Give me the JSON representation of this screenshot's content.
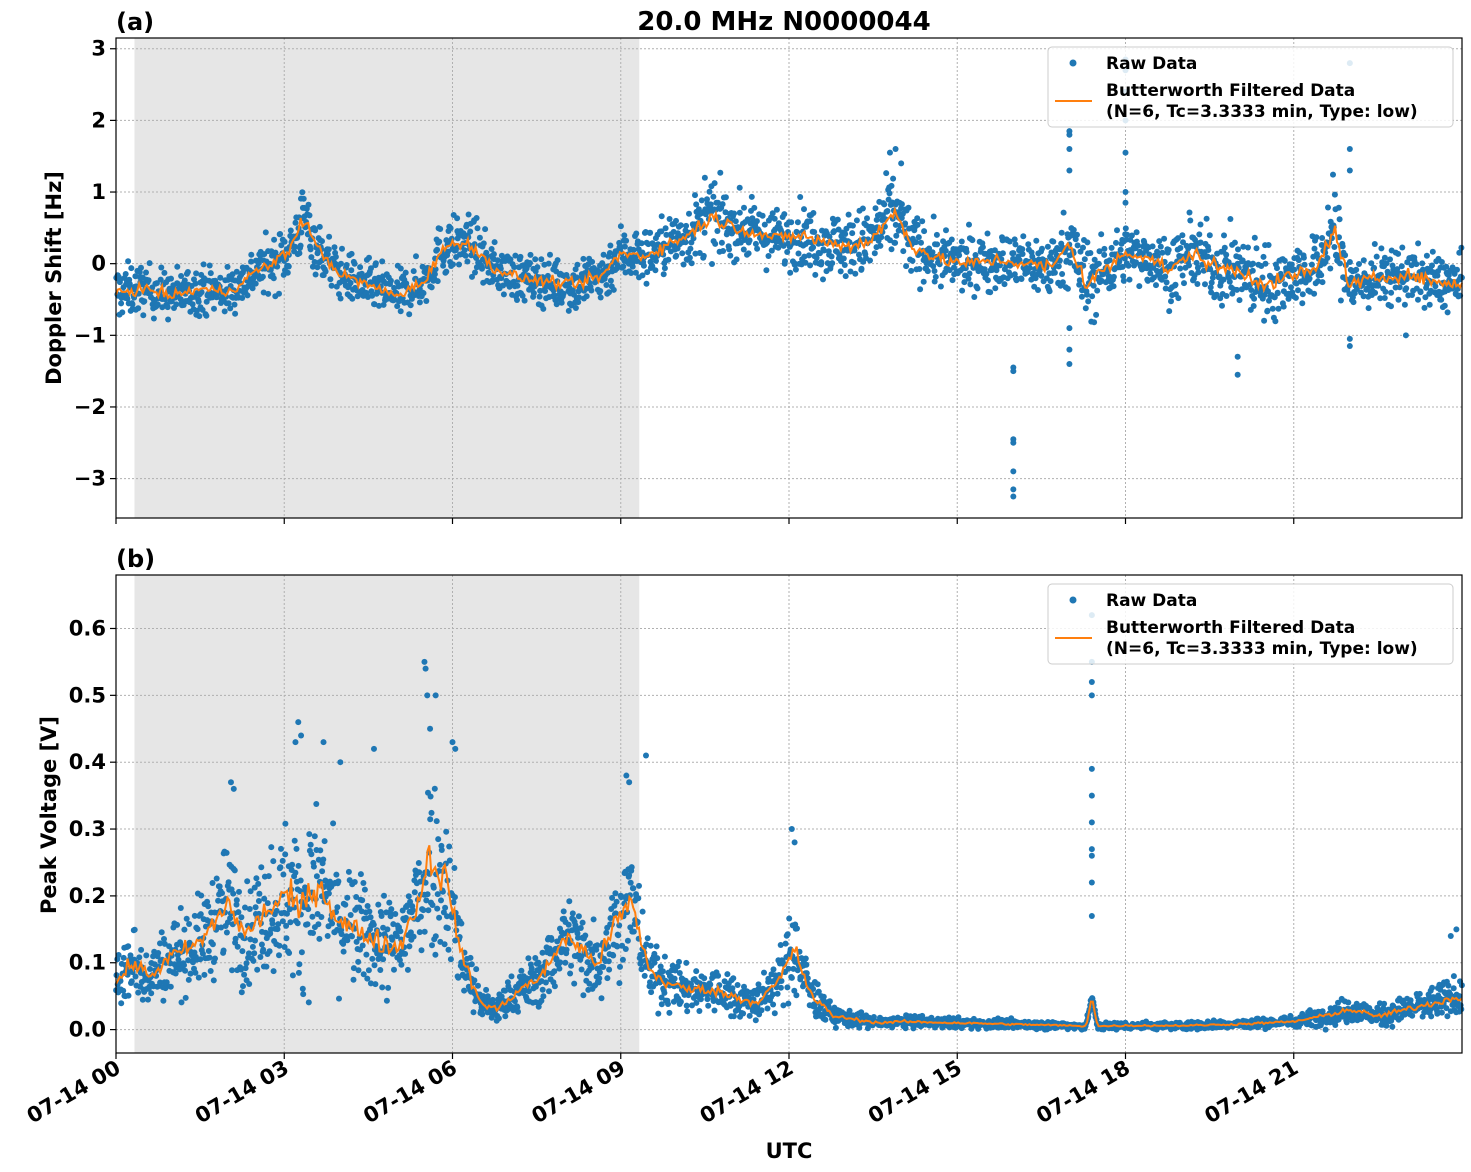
{
  "figure": {
    "title": "20.0 MHz N0000044",
    "xlabel": "UTC",
    "x_tick_labels": [
      "07-14 00",
      "07-14 03",
      "07-14 06",
      "07-14 09",
      "07-14 12",
      "07-14 15",
      "07-14 18",
      "07-14 21"
    ]
  },
  "colors": {
    "raw": "#1f77b4",
    "filtered": "#ff7f0e",
    "shade": "#e6e6e6",
    "grid": "#b0b0b0"
  },
  "chart_data": [
    {
      "type": "scatter",
      "panel_label": "(a)",
      "ylabel": "Doppler Shift [Hz]",
      "x_unit": "hours UTC on 07-14",
      "xlim": [
        0,
        24
      ],
      "ylim": [
        -3.55,
        3.15
      ],
      "y_ticks": [
        3,
        2,
        1,
        0,
        -1,
        -2,
        -3
      ],
      "y_tick_labels": [
        "3",
        "2",
        "1",
        "0",
        "−1",
        "−2",
        "−3"
      ],
      "shaded_x_range": [
        0.33,
        9.33
      ],
      "grid": true,
      "legend_position": "upper right",
      "legend": {
        "raw_label": "Raw Data",
        "filtered_line1": "Butterworth Filtered Data",
        "filtered_line2": "(N=6, Tc=3.3333 min, Type: low)"
      },
      "series": [
        {
          "name": "Butterworth Filtered Data",
          "x": [
            0,
            0.5,
            1,
            1.5,
            2,
            2.5,
            2.8,
            3.1,
            3.35,
            3.6,
            4,
            4.5,
            5,
            5.5,
            5.8,
            6.0,
            6.3,
            6.7,
            7.2,
            7.7,
            8.2,
            8.7,
            9.0,
            9.4,
            9.8,
            10.2,
            10.6,
            10.9,
            11.3,
            11.8,
            12.2,
            12.6,
            13.0,
            13.4,
            13.7,
            13.9,
            14.2,
            14.7,
            15.2,
            15.7,
            16.2,
            16.7,
            17.0,
            17.3,
            17.6,
            18.0,
            18.4,
            18.8,
            19.2,
            19.6,
            20.0,
            20.3,
            20.6,
            21.0,
            21.4,
            21.7,
            22.0,
            22.5,
            23.0,
            23.5,
            24.0
          ],
          "y": [
            -0.4,
            -0.35,
            -0.45,
            -0.35,
            -0.4,
            -0.1,
            0.0,
            0.2,
            0.65,
            0.2,
            -0.15,
            -0.3,
            -0.45,
            -0.25,
            0.2,
            0.25,
            0.3,
            -0.05,
            -0.2,
            -0.25,
            -0.3,
            -0.15,
            0.15,
            0.1,
            0.25,
            0.4,
            0.65,
            0.55,
            0.45,
            0.35,
            0.4,
            0.3,
            0.25,
            0.3,
            0.55,
            0.7,
            0.25,
            0.05,
            0.0,
            0.05,
            0.0,
            -0.05,
            0.3,
            -0.3,
            -0.1,
            0.15,
            0.1,
            -0.1,
            0.15,
            -0.05,
            -0.1,
            -0.2,
            -0.3,
            -0.15,
            -0.1,
            0.5,
            -0.3,
            -0.2,
            -0.15,
            -0.25,
            -0.3
          ]
        },
        {
          "name": "Raw Data",
          "spread": [
            0.35,
            0.3,
            0.3,
            0.3,
            0.3,
            0.3,
            0.35,
            0.35,
            0.4,
            0.35,
            0.3,
            0.3,
            0.3,
            0.3,
            0.35,
            0.35,
            0.35,
            0.3,
            0.3,
            0.3,
            0.35,
            0.35,
            0.35,
            0.35,
            0.35,
            0.4,
            0.45,
            0.4,
            0.35,
            0.35,
            0.4,
            0.4,
            0.4,
            0.45,
            0.5,
            0.55,
            0.4,
            0.35,
            0.35,
            0.35,
            0.35,
            0.4,
            0.45,
            0.6,
            0.4,
            0.35,
            0.35,
            0.4,
            0.4,
            0.45,
            0.45,
            0.5,
            0.45,
            0.4,
            0.4,
            0.6,
            0.4,
            0.35,
            0.35,
            0.35,
            0.35
          ],
          "outliers": {
            "x": [
              16.0,
              16.0,
              16.0,
              16.0,
              16.0,
              16.0,
              16.0,
              17.0,
              17.0,
              17.0,
              17.0,
              17.0,
              17.0,
              17.0,
              18.0,
              18.0,
              18.0,
              18.0,
              18.0,
              18.0,
              18.0,
              20.0,
              20.0,
              22.0,
              22.0,
              22.0,
              22.0,
              22.0,
              13.8,
              13.9,
              14.0,
              10.5,
              23.0
            ],
            "y": [
              -1.45,
              -1.5,
              -2.45,
              -2.5,
              -2.9,
              -3.15,
              -3.25,
              1.6,
              1.8,
              1.85,
              -1.2,
              -1.4,
              -0.9,
              1.3,
              2.85,
              2.7,
              2.4,
              2.0,
              1.55,
              1.0,
              0.85,
              -1.55,
              -1.3,
              2.8,
              1.6,
              1.3,
              -1.05,
              -1.15,
              1.55,
              1.6,
              1.4,
              1.2,
              -1.0
            ]
          }
        }
      ]
    },
    {
      "type": "scatter",
      "panel_label": "(b)",
      "ylabel": "Peak Voltage [V]",
      "x_unit": "hours UTC on 07-14",
      "xlim": [
        0,
        24
      ],
      "ylim": [
        -0.035,
        0.68
      ],
      "y_ticks": [
        0.0,
        0.1,
        0.2,
        0.3,
        0.4,
        0.5,
        0.6
      ],
      "y_tick_labels": [
        "0.0",
        "0.1",
        "0.2",
        "0.3",
        "0.4",
        "0.5",
        "0.6"
      ],
      "shaded_x_range": [
        0.33,
        9.33
      ],
      "grid": true,
      "legend_position": "upper right",
      "legend": {
        "raw_label": "Raw Data",
        "filtered_line1": "Butterworth Filtered Data",
        "filtered_line2": "(N=6, Tc=3.3333 min, Type: low)"
      },
      "series": [
        {
          "name": "Butterworth Filtered Data",
          "x": [
            0,
            0.3,
            0.6,
            1.0,
            1.5,
            2.0,
            2.3,
            2.6,
            3.0,
            3.3,
            3.6,
            4.0,
            4.5,
            5.0,
            5.3,
            5.6,
            5.9,
            6.2,
            6.5,
            6.8,
            7.2,
            7.6,
            8.0,
            8.3,
            8.6,
            8.9,
            9.2,
            9.5,
            9.8,
            10.2,
            10.6,
            11.0,
            11.4,
            11.8,
            12.1,
            12.4,
            12.8,
            13.2,
            13.6,
            14.0,
            15.0,
            16.0,
            17.0,
            17.3,
            17.4,
            17.5,
            18.0,
            19.0,
            20.0,
            21.0,
            21.5,
            22.0,
            22.5,
            23.0,
            23.5,
            24.0
          ],
          "y": [
            0.07,
            0.1,
            0.08,
            0.11,
            0.13,
            0.19,
            0.14,
            0.17,
            0.2,
            0.18,
            0.22,
            0.16,
            0.14,
            0.12,
            0.17,
            0.26,
            0.22,
            0.1,
            0.04,
            0.03,
            0.06,
            0.08,
            0.14,
            0.12,
            0.1,
            0.16,
            0.19,
            0.09,
            0.07,
            0.06,
            0.06,
            0.05,
            0.04,
            0.07,
            0.12,
            0.05,
            0.02,
            0.015,
            0.01,
            0.012,
            0.01,
            0.008,
            0.006,
            0.005,
            0.05,
            0.005,
            0.006,
            0.006,
            0.008,
            0.012,
            0.02,
            0.03,
            0.02,
            0.03,
            0.04,
            0.05
          ]
        },
        {
          "name": "Raw Data",
          "spread": [
            0.04,
            0.05,
            0.04,
            0.05,
            0.06,
            0.08,
            0.07,
            0.08,
            0.1,
            0.1,
            0.1,
            0.08,
            0.07,
            0.07,
            0.09,
            0.12,
            0.1,
            0.05,
            0.025,
            0.02,
            0.03,
            0.04,
            0.06,
            0.06,
            0.05,
            0.07,
            0.08,
            0.04,
            0.035,
            0.03,
            0.03,
            0.03,
            0.025,
            0.035,
            0.06,
            0.03,
            0.012,
            0.01,
            0.008,
            0.008,
            0.007,
            0.006,
            0.005,
            0.005,
            0.005,
            0.005,
            0.005,
            0.005,
            0.006,
            0.008,
            0.012,
            0.018,
            0.014,
            0.018,
            0.022,
            0.028
          ],
          "outliers": {
            "x": [
              5.5,
              5.52,
              5.55,
              5.7,
              5.6,
              3.25,
              3.3,
              3.2,
              3.7,
              4.0,
              4.6,
              6.0,
              6.05,
              2.05,
              2.1,
              9.1,
              9.15,
              9.45,
              12.05,
              12.1,
              17.4,
              17.4,
              17.4,
              17.4,
              17.4,
              17.4,
              17.4,
              17.4,
              17.4,
              17.4,
              17.4,
              23.8,
              23.9
            ],
            "y": [
              0.55,
              0.54,
              0.5,
              0.5,
              0.45,
              0.46,
              0.44,
              0.43,
              0.43,
              0.4,
              0.42,
              0.43,
              0.42,
              0.37,
              0.36,
              0.38,
              0.37,
              0.41,
              0.3,
              0.28,
              0.62,
              0.55,
              0.52,
              0.5,
              0.39,
              0.35,
              0.31,
              0.27,
              0.26,
              0.22,
              0.17,
              0.14,
              0.15
            ]
          }
        }
      ]
    }
  ]
}
